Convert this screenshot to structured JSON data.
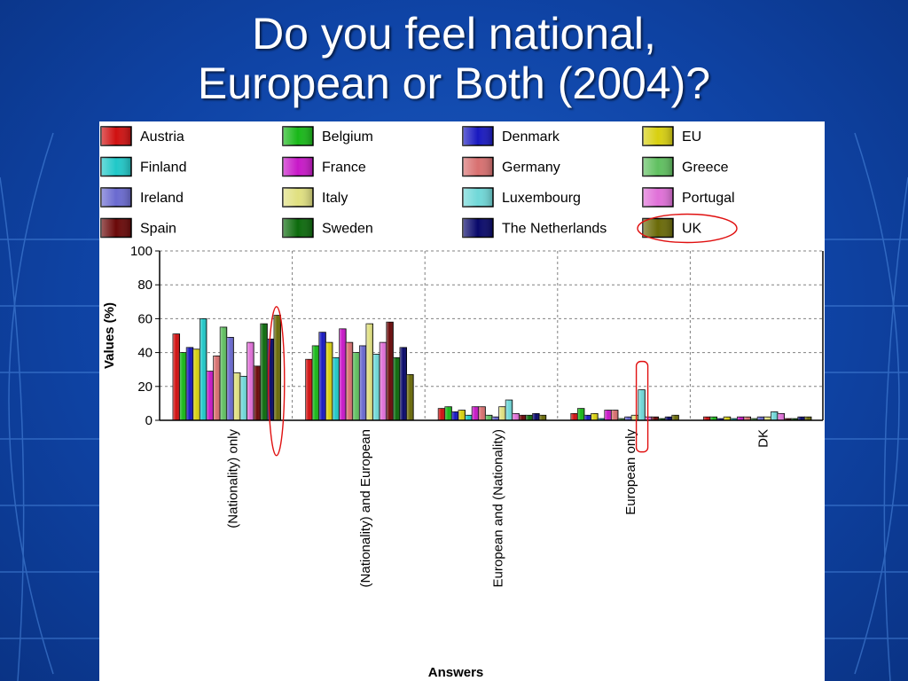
{
  "slide": {
    "title_line1": "Do you feel national,",
    "title_line2": "European or Both (2004)?"
  },
  "colors": {
    "background": "#0f44a6",
    "highlight_circle": "#e01010"
  },
  "chart_data": {
    "type": "bar",
    "xlabel": "Answers",
    "ylabel": "Values (%)",
    "ylim": [
      0,
      100
    ],
    "yticks": [
      0,
      20,
      40,
      60,
      80,
      100
    ],
    "grid": "dashed",
    "legend_position": "top",
    "categories": [
      "(Nationality) only",
      "(Nationality) and European",
      "European and (Nationality)",
      "European only",
      "DK"
    ],
    "series": [
      {
        "name": "Austria",
        "color": "#d01010",
        "values": [
          51,
          36,
          7,
          4,
          2
        ]
      },
      {
        "name": "Belgium",
        "color": "#18b818",
        "values": [
          40,
          44,
          8,
          7,
          2
        ]
      },
      {
        "name": "Denmark",
        "color": "#1818c0",
        "values": [
          43,
          52,
          5,
          3,
          1
        ]
      },
      {
        "name": "EU",
        "color": "#d8d010",
        "values": [
          42,
          46,
          6,
          4,
          2
        ]
      },
      {
        "name": "Finland",
        "color": "#20c8c8",
        "values": [
          60,
          37,
          3,
          1,
          1
        ]
      },
      {
        "name": "France",
        "color": "#c818c8",
        "values": [
          29,
          54,
          8,
          6,
          2
        ]
      },
      {
        "name": "Germany",
        "color": "#d87070",
        "values": [
          38,
          46,
          8,
          6,
          2
        ]
      },
      {
        "name": "Greece",
        "color": "#60c060",
        "values": [
          55,
          40,
          3,
          1,
          1
        ]
      },
      {
        "name": "Ireland",
        "color": "#6a6ad0",
        "values": [
          49,
          44,
          2,
          2,
          2
        ]
      },
      {
        "name": "Italy",
        "color": "#e0e080",
        "values": [
          28,
          57,
          8,
          3,
          2
        ]
      },
      {
        "name": "Luxembourg",
        "color": "#70d8d8",
        "values": [
          26,
          39,
          12,
          18,
          5
        ]
      },
      {
        "name": "Portugal",
        "color": "#e070d8",
        "values": [
          46,
          46,
          4,
          2,
          4
        ]
      },
      {
        "name": "Spain",
        "color": "#6a0808",
        "values": [
          32,
          58,
          3,
          2,
          1
        ]
      },
      {
        "name": "Sweden",
        "color": "#0c6a0c",
        "values": [
          57,
          37,
          3,
          1,
          1
        ]
      },
      {
        "name": "The Netherlands",
        "color": "#08086a",
        "values": [
          48,
          43,
          4,
          2,
          2
        ]
      },
      {
        "name": "UK",
        "color": "#6a6a08",
        "values": [
          62,
          27,
          3,
          3,
          2
        ]
      }
    ]
  }
}
